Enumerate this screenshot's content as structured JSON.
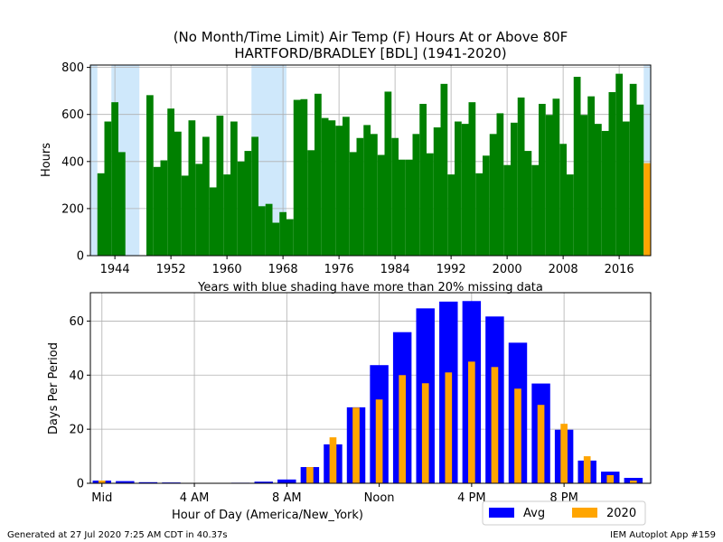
{
  "title": {
    "line1": "(No Month/Time Limit) Air Temp (F) Hours At or Above 80F",
    "line2": "HARTFORD/BRADLEY [BDL] (1941-2020)"
  },
  "note": "Years with blue shading have more than 20% missing data",
  "footer": {
    "left": "Generated at 27 Jul 2020 7:25 AM CDT in 40.37s",
    "right": "IEM Autoplot App #159"
  },
  "colors": {
    "bar": "#008000",
    "current": "#FFA500",
    "shade": "#cfe8fb",
    "avg": "#0000ff",
    "grid": "#b0b0b0"
  },
  "chart_data": [
    {
      "type": "bar",
      "ylabel": "Hours",
      "xlabel": "",
      "xlim": [
        1940.5,
        2020.5
      ],
      "ylim": [
        0,
        810
      ],
      "xticks": [
        1944,
        1952,
        1960,
        1968,
        1976,
        1984,
        1992,
        2000,
        2008,
        2016
      ],
      "yticks": [
        0,
        200,
        400,
        600,
        800
      ],
      "grid": true,
      "shaded_years": [
        {
          "from": 1940.5,
          "to": 1941.5
        },
        {
          "from": 1943.5,
          "to": 1947.5
        },
        {
          "from": 1963.5,
          "to": 1968.5
        },
        {
          "from": 2019.5,
          "to": 2020.5
        }
      ],
      "current_year": 2020,
      "x": [
        1942,
        1943,
        1944,
        1945,
        1946,
        1947,
        1948,
        1949,
        1950,
        1951,
        1952,
        1953,
        1954,
        1955,
        1956,
        1957,
        1958,
        1959,
        1960,
        1961,
        1962,
        1963,
        1964,
        1965,
        1966,
        1967,
        1968,
        1969,
        1970,
        1971,
        1972,
        1973,
        1974,
        1975,
        1976,
        1977,
        1978,
        1979,
        1980,
        1981,
        1982,
        1983,
        1984,
        1985,
        1986,
        1987,
        1988,
        1989,
        1990,
        1991,
        1992,
        1993,
        1994,
        1995,
        1996,
        1997,
        1998,
        1999,
        2000,
        2001,
        2002,
        2003,
        2004,
        2005,
        2006,
        2007,
        2008,
        2009,
        2010,
        2011,
        2012,
        2013,
        2014,
        2015,
        2016,
        2017,
        2018,
        2019,
        2020
      ],
      "values": [
        350,
        570,
        652,
        440,
        0,
        0,
        0,
        682,
        377,
        405,
        625,
        527,
        340,
        575,
        390,
        505,
        290,
        595,
        345,
        570,
        400,
        445,
        505,
        210,
        220,
        140,
        185,
        155,
        662,
        665,
        448,
        688,
        585,
        575,
        552,
        590,
        440,
        500,
        555,
        517,
        428,
        697,
        500,
        408,
        408,
        517,
        645,
        435,
        545,
        730,
        345,
        570,
        560,
        652,
        350,
        425,
        517,
        605,
        385,
        565,
        672,
        445,
        385,
        645,
        598,
        667,
        475,
        345,
        760,
        598,
        677,
        560,
        530,
        695,
        773,
        570,
        730,
        642,
        393
      ]
    },
    {
      "type": "bar",
      "ylabel": "Days Per Period",
      "xlabel": "Hour of Day (America/New_York)",
      "xlim": [
        -0.5,
        23.75
      ],
      "ylim": [
        0,
        70.5
      ],
      "yticks": [
        0,
        20,
        40,
        60
      ],
      "xtick_values": [
        0,
        4,
        8,
        12,
        16,
        20
      ],
      "xtick_labels": [
        "Mid",
        "4 AM",
        "8 AM",
        "Noon",
        "4 PM",
        "8 PM"
      ],
      "grid": true,
      "legend_position": "below-right",
      "hours": [
        0,
        1,
        2,
        3,
        4,
        5,
        6,
        7,
        8,
        9,
        10,
        11,
        12,
        13,
        14,
        15,
        16,
        17,
        18,
        19,
        20,
        21,
        22,
        23
      ],
      "series": [
        {
          "name": "Avg",
          "values": [
            1.0,
            0.8,
            0.4,
            0.3,
            0.1,
            0.1,
            0.2,
            0.6,
            1.4,
            6.0,
            14.4,
            28.1,
            43.7,
            55.9,
            64.7,
            67.2,
            67.4,
            61.7,
            52.0,
            36.9,
            19.8,
            8.4,
            4.3,
            2.0
          ]
        },
        {
          "name": "2020",
          "values": [
            1,
            0,
            0,
            0,
            0,
            0,
            0,
            0,
            0,
            6,
            17,
            28,
            31,
            40,
            37,
            41,
            45,
            43,
            35,
            29,
            22,
            10,
            3,
            1
          ]
        }
      ]
    }
  ]
}
